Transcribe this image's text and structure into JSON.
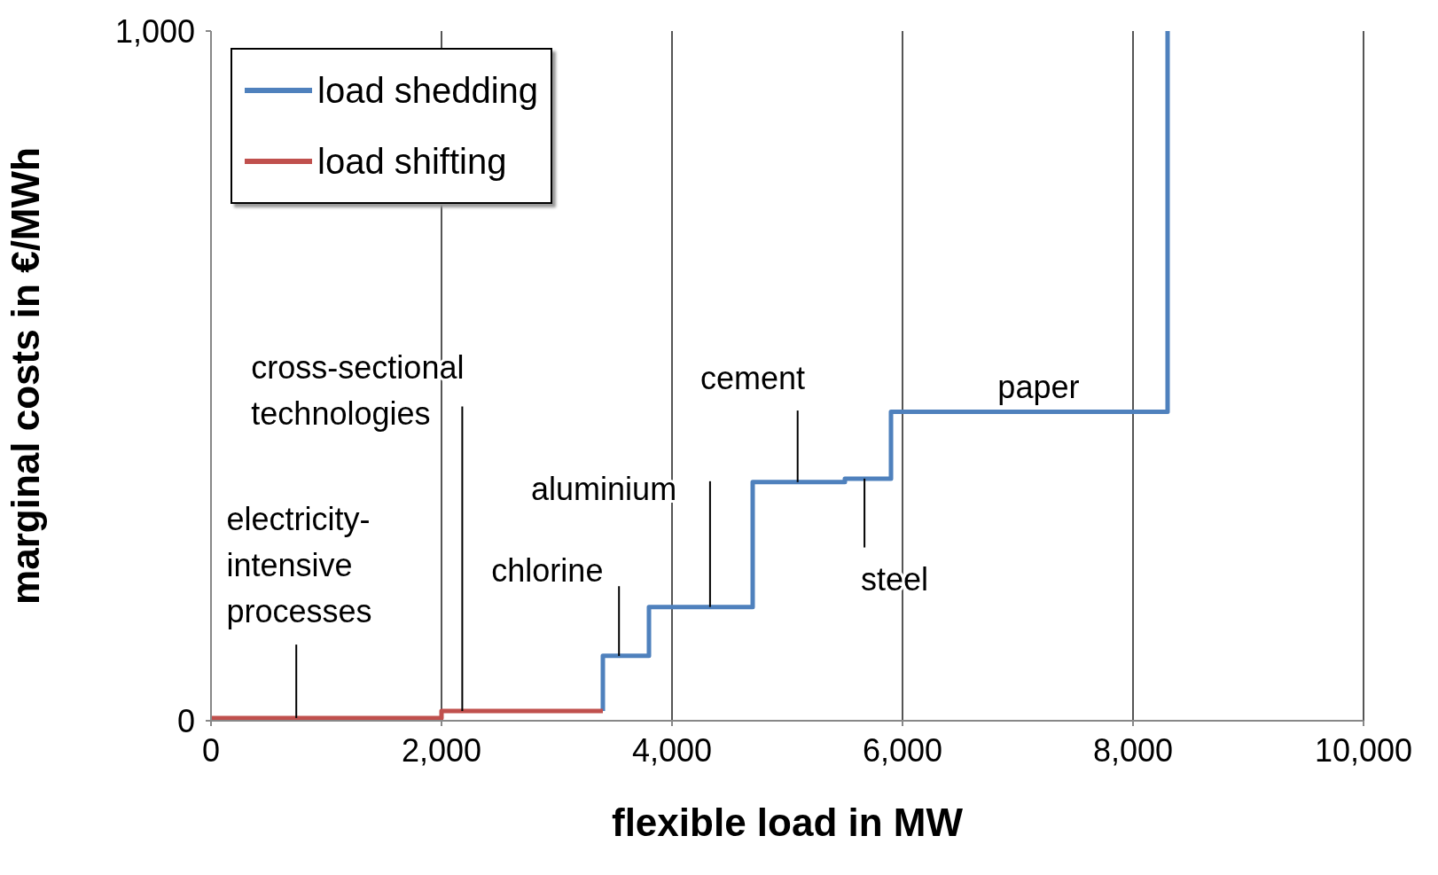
{
  "chart_data": {
    "type": "step",
    "xlabel": "flexible load in MW",
    "ylabel": "marginal costs in €/MWh",
    "xlim": [
      0,
      10000
    ],
    "xticks": [
      {
        "value": 0,
        "label": "0"
      },
      {
        "value": 2000,
        "label": "2,000"
      },
      {
        "value": 4000,
        "label": "4,000"
      },
      {
        "value": 6000,
        "label": "6,000"
      },
      {
        "value": 8000,
        "label": "8,000"
      },
      {
        "value": 10000,
        "label": "10,000"
      }
    ],
    "ylim": [
      0,
      1000
    ],
    "yticks": [
      {
        "value": 0,
        "label": "0"
      },
      {
        "value": 1000,
        "label": "1,000"
      }
    ],
    "grid": "x",
    "legend": "top left",
    "series": [
      {
        "name": "load shedding",
        "color": "#4f81bd",
        "x": [
          3400,
          3400,
          3800,
          4700,
          5500,
          5900,
          8300
        ],
        "values": [
          14,
          94,
          165,
          346,
          351,
          448,
          1000
        ]
      },
      {
        "name": "load shifting",
        "color": "#c0504d",
        "x": [
          0,
          2000,
          3400
        ],
        "values": [
          4,
          14,
          14
        ]
      }
    ],
    "annotations": [
      {
        "text": "electricity-\nintensive\nprocesses",
        "x": 740,
        "y": 4
      },
      {
        "text": "cross-sectional\ntechnologies",
        "x": 2180,
        "y": 14
      },
      {
        "text": "chlorine",
        "x": 3540,
        "y": 94
      },
      {
        "text": "aluminium",
        "x": 4330,
        "y": 165
      },
      {
        "text": "cement",
        "x": 5090,
        "y": 346
      },
      {
        "text": "steel",
        "x": 5670,
        "y": 351
      },
      {
        "text": "paper",
        "x": 7180,
        "y": 448
      }
    ]
  }
}
